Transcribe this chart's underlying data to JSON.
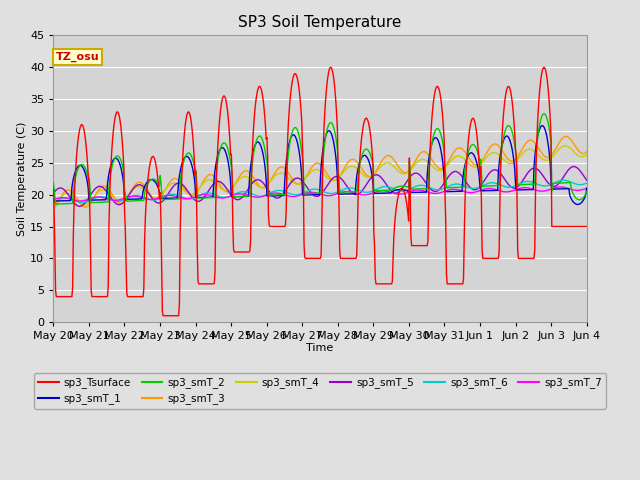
{
  "title": "SP3 Soil Temperature",
  "xlabel": "Time",
  "ylabel": "Soil Temperature (C)",
  "ylim": [
    0,
    45
  ],
  "annotation_text": "TZ_osu",
  "annotation_color": "#cc0000",
  "annotation_bg": "#ffffcc",
  "annotation_border": "#ccaa00",
  "series_colors": {
    "sp3_Tsurface": "#ff0000",
    "sp3_smT_1": "#0000cc",
    "sp3_smT_2": "#00cc00",
    "sp3_smT_3": "#ff9900",
    "sp3_smT_4": "#cccc00",
    "sp3_smT_5": "#9900cc",
    "sp3_smT_6": "#00cccc",
    "sp3_smT_7": "#ff00ff"
  },
  "x_tick_labels": [
    "May 20",
    "May 21",
    "May 22",
    "May 23",
    "May 24",
    "May 25",
    "May 26",
    "May 27",
    "May 28",
    "May 29",
    "May 30",
    "May 31",
    "Jun 1",
    "Jun 2",
    "Jun 3",
    "Jun 4"
  ],
  "background_color": "#e0e0e0",
  "plot_bg_color": "#d4d4d4",
  "grid_color": "#ffffff",
  "figsize": [
    6.4,
    4.8
  ],
  "dpi": 100
}
